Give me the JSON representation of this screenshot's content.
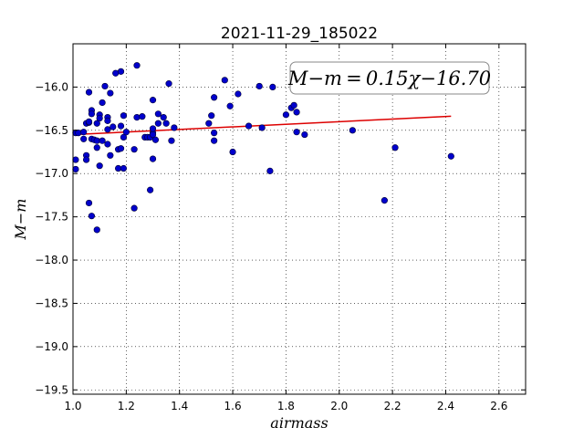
{
  "chart_data": {
    "type": "scatter",
    "title": "2021-11-29_185022",
    "xlabel": "airmass",
    "ylabel": "M−m",
    "annotation": "M−m = 0.15χ−16.70",
    "xlim": [
      1.0,
      2.7
    ],
    "ylim": [
      -19.55,
      -15.5
    ],
    "y_inverted": true,
    "grid": true,
    "x_ticks": [
      1.0,
      1.2,
      1.4,
      1.6,
      1.8,
      2.0,
      2.2,
      2.4,
      2.6
    ],
    "x_tick_labels": [
      "1.0",
      "1.2",
      "1.4",
      "1.6",
      "1.8",
      "2.0",
      "2.2",
      "2.4",
      "2.6"
    ],
    "y_ticks": [
      -16.0,
      -16.5,
      -17.0,
      -17.5,
      -18.0,
      -18.5,
      -19.0,
      -19.5
    ],
    "y_tick_labels": [
      "−16.0",
      "−16.5",
      "−17.0",
      "−17.5",
      "−18.0",
      "−18.5",
      "−19.0",
      "−19.5"
    ],
    "point_color": "#0000cc",
    "fit_color": "#dd0000",
    "fit": {
      "slope": 0.15,
      "intercept": -16.7,
      "x_range": [
        1.0,
        2.42
      ]
    },
    "points": [
      [
        1.01,
        -16.84
      ],
      [
        1.01,
        -16.95
      ],
      [
        1.01,
        -16.53
      ],
      [
        1.02,
        -16.53
      ],
      [
        1.04,
        -16.52
      ],
      [
        1.04,
        -16.6
      ],
      [
        1.05,
        -16.79
      ],
      [
        1.05,
        -16.84
      ],
      [
        1.05,
        -16.42
      ],
      [
        1.06,
        -16.41
      ],
      [
        1.06,
        -16.4
      ],
      [
        1.06,
        -17.34
      ],
      [
        1.06,
        -16.06
      ],
      [
        1.07,
        -16.27
      ],
      [
        1.07,
        -16.31
      ],
      [
        1.07,
        -16.6
      ],
      [
        1.07,
        -17.49
      ],
      [
        1.08,
        -16.61
      ],
      [
        1.09,
        -16.42
      ],
      [
        1.09,
        -16.62
      ],
      [
        1.09,
        -16.7
      ],
      [
        1.09,
        -17.65
      ],
      [
        1.1,
        -16.32
      ],
      [
        1.1,
        -16.36
      ],
      [
        1.1,
        -16.91
      ],
      [
        1.11,
        -16.62
      ],
      [
        1.11,
        -16.18
      ],
      [
        1.12,
        -15.99
      ],
      [
        1.13,
        -16.35
      ],
      [
        1.13,
        -16.39
      ],
      [
        1.13,
        -16.49
      ],
      [
        1.13,
        -16.66
      ],
      [
        1.14,
        -16.07
      ],
      [
        1.14,
        -16.79
      ],
      [
        1.15,
        -16.46
      ],
      [
        1.16,
        -15.84
      ],
      [
        1.17,
        -16.72
      ],
      [
        1.17,
        -16.94
      ],
      [
        1.18,
        -15.82
      ],
      [
        1.18,
        -16.45
      ],
      [
        1.18,
        -16.71
      ],
      [
        1.19,
        -16.58
      ],
      [
        1.19,
        -16.33
      ],
      [
        1.19,
        -16.94
      ],
      [
        1.2,
        -16.52
      ],
      [
        1.23,
        -17.4
      ],
      [
        1.23,
        -16.72
      ],
      [
        1.24,
        -15.75
      ],
      [
        1.24,
        -16.35
      ],
      [
        1.26,
        -16.34
      ],
      [
        1.27,
        -16.58
      ],
      [
        1.28,
        -16.58
      ],
      [
        1.29,
        -17.19
      ],
      [
        1.29,
        -16.58
      ],
      [
        1.3,
        -16.53
      ],
      [
        1.3,
        -16.48
      ],
      [
        1.3,
        -16.55
      ],
      [
        1.3,
        -16.15
      ],
      [
        1.3,
        -16.83
      ],
      [
        1.31,
        -16.61
      ],
      [
        1.32,
        -16.31
      ],
      [
        1.32,
        -16.42
      ],
      [
        1.34,
        -16.35
      ],
      [
        1.35,
        -16.42
      ],
      [
        1.36,
        -15.96
      ],
      [
        1.37,
        -16.62
      ],
      [
        1.38,
        -16.47
      ],
      [
        1.51,
        -16.42
      ],
      [
        1.52,
        -16.33
      ],
      [
        1.53,
        -16.12
      ],
      [
        1.53,
        -16.53
      ],
      [
        1.53,
        -16.62
      ],
      [
        1.57,
        -15.92
      ],
      [
        1.59,
        -16.22
      ],
      [
        1.6,
        -16.75
      ],
      [
        1.62,
        -16.08
      ],
      [
        1.66,
        -16.45
      ],
      [
        1.7,
        -15.99
      ],
      [
        1.71,
        -16.47
      ],
      [
        1.74,
        -16.97
      ],
      [
        1.75,
        -16.0
      ],
      [
        1.8,
        -16.32
      ],
      [
        1.82,
        -16.24
      ],
      [
        1.83,
        -16.21
      ],
      [
        1.84,
        -16.29
      ],
      [
        1.84,
        -16.52
      ],
      [
        1.87,
        -16.55
      ],
      [
        2.05,
        -16.5
      ],
      [
        2.17,
        -17.31
      ],
      [
        2.21,
        -16.7
      ],
      [
        2.42,
        -16.8
      ]
    ]
  }
}
